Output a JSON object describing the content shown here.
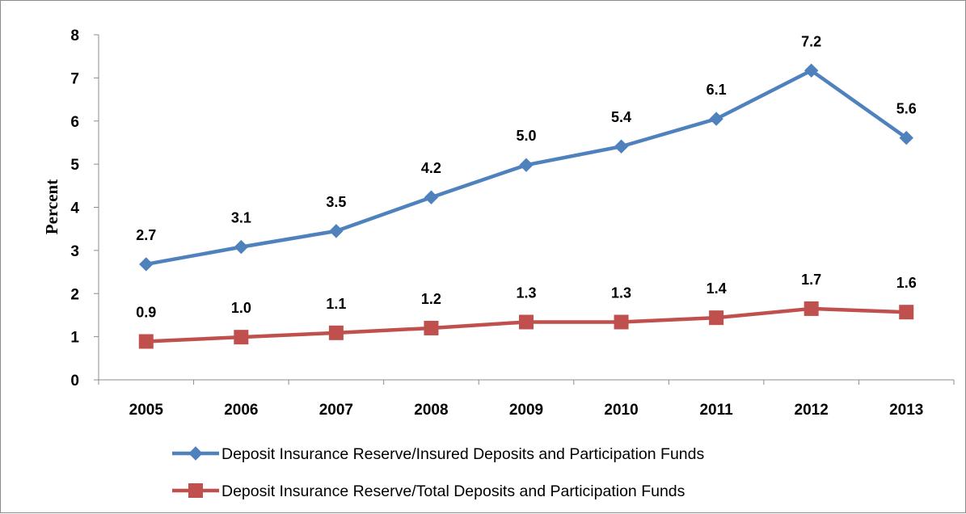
{
  "chart_data": {
    "type": "line",
    "ylabel": "Percent",
    "ylim": [
      0,
      8
    ],
    "yticks": [
      "0",
      "1",
      "2",
      "3",
      "4",
      "5",
      "6",
      "7",
      "8"
    ],
    "categories": [
      "2005",
      "2006",
      "2007",
      "2008",
      "2009",
      "2010",
      "2011",
      "2012",
      "2013"
    ],
    "grid": false,
    "legend_position": "bottom",
    "series": [
      {
        "name": "Deposit Insurance Reserve/Insured Deposits and Participation Funds",
        "values": [
          2.68,
          3.08,
          3.45,
          4.23,
          4.98,
          5.41,
          6.05,
          7.17,
          5.61
        ],
        "labels": [
          "2.7",
          "3.1",
          "3.5",
          "4.2",
          "5.0",
          "5.4",
          "6.1",
          "7.2",
          "5.6"
        ],
        "color": "#4f81bd",
        "marker": "diamond"
      },
      {
        "name": "Deposit Insurance Reserve/Total Deposits and Participation Funds",
        "values": [
          0.89,
          0.99,
          1.09,
          1.2,
          1.34,
          1.34,
          1.44,
          1.65,
          1.57
        ],
        "labels": [
          "0.9",
          "1.0",
          "1.1",
          "1.2",
          "1.3",
          "1.3",
          "1.4",
          "1.7",
          "1.6"
        ],
        "color": "#c0504d",
        "marker": "square"
      }
    ]
  }
}
